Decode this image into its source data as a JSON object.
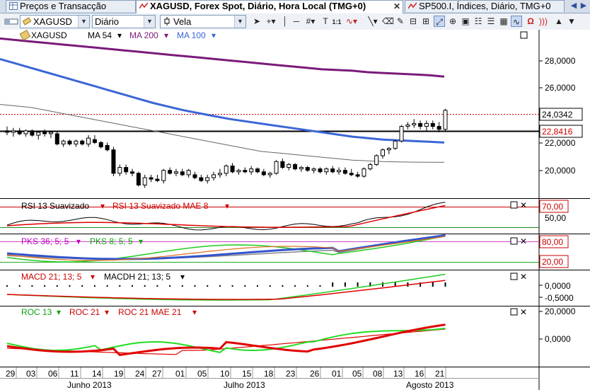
{
  "tabs": [
    {
      "label": "Preços e Transacção",
      "active": false
    },
    {
      "label": "XAGUSD, Forex Spot, Diário, Hora Local (TMG+0)",
      "active": true
    },
    {
      "label": "SP500.I, Índices, Diário, TMG+0",
      "active": false
    }
  ],
  "toolbar": {
    "symbol": "XAGUSD",
    "interval": "Diário",
    "chart_type": "Vela",
    "zoom_label": "1:1"
  },
  "main_pane": {
    "legend": {
      "symbol": "XAGUSD",
      "ma1": "MA 54",
      "ma2": "MA 200",
      "ma3": "MA 100"
    },
    "y_ticks": [
      "28,0000",
      "26,0000",
      "22,0000",
      "20,0000"
    ],
    "price_tag": "24,0342",
    "line_tag": "22,8416"
  },
  "rsi_pane": {
    "legend1": "RSI 13 Suavizado",
    "legend2": "RSI 13 Suavizado MAE 8",
    "tag": "70,00",
    "tick": "50,00"
  },
  "pks_pane": {
    "legend1": "PKS 36; 5; 5",
    "legend2": "PKS 8; 5; 5",
    "tag_high": "80,00",
    "tag_low": "20,00"
  },
  "macd_pane": {
    "legend1": "MACD 21; 13; 5",
    "legend2": "MACDH 21; 13; 5",
    "ticks": [
      "0,0000",
      "-0,5000"
    ]
  },
  "roc_pane": {
    "legend1": "ROC 13",
    "legend2": "ROC 21",
    "legend3": "ROC 21 MAE 21",
    "ticks": [
      "20,0000",
      "0,0000"
    ]
  },
  "x_axis": {
    "days": [
      "29",
      "03",
      "06",
      "11",
      "14",
      "19",
      "24",
      "27",
      "01",
      "05",
      "10",
      "15",
      "18",
      "23",
      "26",
      "01",
      "05",
      "08",
      "13",
      "16",
      "21"
    ],
    "months": [
      "Junho 2013",
      "Julho 2013",
      "Agosto 2013"
    ]
  },
  "colors": {
    "ma54": "#555555",
    "ma200": "#7a1a7a",
    "ma100": "#3b66d6",
    "rsi": "#000000",
    "rsi_mae": "#e00000",
    "pks_fast": "#22cc22",
    "pks_slow": "#3355cc",
    "macd": "#22cc22",
    "macd_signal": "#e00000",
    "roc13": "#22dd22",
    "roc21": "#e00000"
  },
  "chart_data": {
    "type": "candlestick",
    "candles": [
      [
        22.6,
        22.9,
        22.3,
        22.5
      ],
      [
        22.5,
        22.8,
        22.2,
        22.6
      ],
      [
        22.6,
        22.8,
        22.3,
        22.4
      ],
      [
        22.4,
        22.7,
        22.2,
        22.6
      ],
      [
        22.6,
        22.7,
        22.2,
        22.3
      ],
      [
        22.3,
        22.6,
        22.0,
        22.5
      ],
      [
        22.5,
        22.7,
        22.2,
        22.4
      ],
      [
        22.4,
        22.6,
        22.1,
        22.5
      ],
      [
        22.4,
        22.6,
        21.6,
        21.7
      ],
      [
        21.7,
        22.0,
        21.5,
        21.9
      ],
      [
        21.9,
        22.0,
        21.6,
        21.7
      ],
      [
        21.7,
        22.0,
        21.5,
        21.9
      ],
      [
        21.9,
        22.0,
        21.6,
        21.7
      ],
      [
        21.7,
        22.3,
        21.5,
        22.1
      ],
      [
        22.0,
        22.3,
        21.7,
        21.8
      ],
      [
        21.8,
        21.9,
        21.4,
        21.5
      ],
      [
        21.6,
        21.8,
        21.2,
        21.3
      ],
      [
        21.3,
        21.5,
        19.5,
        19.7
      ],
      [
        19.7,
        20.3,
        19.5,
        20.1
      ],
      [
        20.1,
        20.3,
        19.6,
        19.8
      ],
      [
        19.8,
        20.0,
        19.5,
        19.7
      ],
      [
        19.7,
        19.8,
        18.8,
        18.9
      ],
      [
        18.9,
        19.6,
        18.7,
        19.4
      ],
      [
        19.4,
        19.6,
        19.1,
        19.3
      ],
      [
        19.3,
        19.6,
        19.1,
        19.2
      ],
      [
        19.2,
        20.0,
        19.0,
        19.9
      ],
      [
        19.9,
        20.1,
        19.6,
        19.7
      ],
      [
        19.7,
        20.0,
        19.5,
        19.8
      ],
      [
        19.8,
        20.0,
        19.5,
        19.6
      ],
      [
        19.6,
        20.0,
        19.4,
        19.9
      ],
      [
        19.6,
        19.8,
        19.3,
        19.4
      ],
      [
        19.4,
        19.6,
        19.1,
        19.2
      ],
      [
        19.2,
        19.6,
        19.0,
        19.4
      ],
      [
        19.4,
        19.8,
        19.2,
        19.6
      ],
      [
        19.6,
        20.0,
        19.4,
        19.7
      ],
      [
        19.7,
        20.3,
        19.5,
        20.2
      ],
      [
        20.2,
        20.4,
        19.7,
        19.8
      ],
      [
        19.8,
        20.0,
        19.6,
        19.9
      ],
      [
        19.9,
        20.1,
        19.7,
        19.8
      ],
      [
        19.8,
        20.2,
        19.6,
        20.0
      ],
      [
        20.0,
        20.1,
        19.7,
        19.8
      ],
      [
        19.8,
        20.0,
        19.5,
        19.6
      ],
      [
        19.6,
        19.8,
        19.4,
        19.7
      ],
      [
        19.7,
        20.6,
        19.6,
        20.5
      ],
      [
        20.5,
        20.7,
        20.0,
        20.1
      ],
      [
        20.1,
        20.4,
        19.9,
        20.3
      ],
      [
        20.3,
        20.4,
        19.9,
        20.0
      ],
      [
        20.0,
        20.2,
        19.8,
        20.1
      ],
      [
        20.1,
        20.2,
        19.8,
        19.9
      ],
      [
        19.9,
        20.1,
        19.7,
        20.0
      ],
      [
        20.0,
        20.1,
        19.7,
        19.8
      ],
      [
        19.8,
        20.1,
        19.6,
        20.0
      ],
      [
        20.0,
        20.2,
        19.7,
        19.8
      ],
      [
        19.8,
        20.1,
        19.6,
        19.9
      ],
      [
        19.9,
        20.1,
        19.6,
        19.7
      ],
      [
        19.7,
        20.0,
        19.5,
        19.6
      ],
      [
        19.6,
        19.8,
        19.4,
        19.5
      ],
      [
        19.5,
        20.1,
        19.4,
        20.0
      ],
      [
        20.0,
        20.4,
        19.9,
        20.3
      ],
      [
        20.3,
        21.0,
        20.2,
        20.9
      ],
      [
        20.9,
        21.4,
        20.7,
        21.3
      ],
      [
        21.3,
        21.5,
        21.0,
        21.4
      ],
      [
        21.4,
        22.0,
        21.3,
        21.9
      ],
      [
        21.9,
        23.0,
        21.8,
        22.9
      ],
      [
        22.9,
        23.2,
        22.7,
        23.0
      ],
      [
        23.0,
        23.4,
        22.8,
        23.1
      ],
      [
        23.1,
        23.3,
        22.7,
        22.9
      ],
      [
        22.9,
        23.3,
        22.6,
        23.1
      ],
      [
        23.1,
        23.3,
        22.7,
        22.9
      ],
      [
        22.9,
        23.2,
        22.5,
        22.7
      ],
      [
        22.7,
        24.1,
        22.6,
        24.0
      ]
    ],
    "ma54": [
      24.4,
      24.3,
      24.2,
      24.0,
      23.8,
      23.6,
      23.4,
      23.2,
      23.0,
      22.8,
      22.6,
      22.4,
      22.2,
      22.0,
      21.8,
      21.6,
      21.4,
      21.2,
      21.1,
      21.0,
      20.9,
      20.8,
      20.7,
      20.6,
      20.55,
      20.5,
      20.48,
      20.46,
      20.45,
      20.45
    ],
    "ma200": [
      28.9,
      28.8,
      28.7,
      28.6,
      28.5,
      28.4,
      28.3,
      28.2,
      28.1,
      28.0,
      27.9,
      27.8,
      27.7,
      27.6,
      27.5,
      27.4,
      27.3,
      27.2,
      27.1,
      27.0,
      26.9,
      26.8,
      26.75,
      26.7,
      26.6,
      26.55,
      26.5,
      26.45,
      26.4,
      26.3
    ],
    "ma100": [
      27.5,
      27.2,
      26.9,
      26.6,
      26.3,
      26.0,
      25.7,
      25.4,
      25.1,
      24.8,
      24.5,
      24.25,
      24.0,
      23.8,
      23.6,
      23.4,
      23.25,
      23.1,
      22.95,
      22.8,
      22.65,
      22.5,
      22.35,
      22.2,
      22.1,
      22.0,
      21.95,
      21.9,
      21.85,
      21.8
    ],
    "y_range": [
      18.0,
      29.5
    ],
    "horizontal_line": 22.8416,
    "last_price": 24.0342
  }
}
